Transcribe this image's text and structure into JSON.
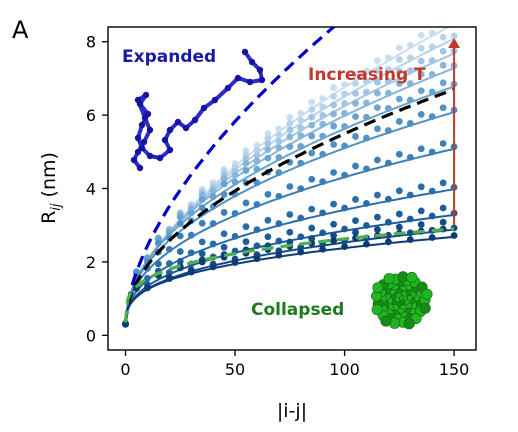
{
  "panel_label": "A",
  "colors": {
    "expanded": "#1a1aa8",
    "collapsed": "#1e7a1e",
    "arrow": "#c0392b",
    "expanded_fit": "#0000cc",
    "collapsed_fit": "#4caf50",
    "mid_fit": "#000000",
    "series_ramp": [
      "#c9dff0",
      "#b7d3ea",
      "#a1c5e3",
      "#87b5da",
      "#6ba3d0",
      "#5191c5",
      "#3b7fba",
      "#2a6dab",
      "#1d5c9a",
      "#144b86",
      "#0e3c72"
    ]
  },
  "chart_data": {
    "type": "scatter",
    "title": "",
    "xlabel": "|i-j|",
    "ylabel_main": "R",
    "ylabel_sub": "ij",
    "ylabel_unit": "(nm)",
    "xlim": [
      -8,
      160
    ],
    "ylim": [
      -0.4,
      8.4
    ],
    "xticks": [
      0,
      50,
      100,
      150
    ],
    "yticks": [
      0,
      2,
      4,
      6,
      8
    ],
    "grid": false,
    "x": [
      0,
      5,
      10,
      15,
      20,
      25,
      30,
      35,
      40,
      45,
      50,
      55,
      60,
      65,
      70,
      75,
      80,
      85,
      90,
      95,
      100,
      105,
      110,
      115,
      120,
      125,
      130,
      135,
      140,
      145,
      150
    ],
    "series_end_values": [
      8.6,
      8.2,
      7.8,
      7.4,
      6.9,
      6.2,
      5.2,
      4.1,
      3.4,
      3.0,
      2.8
    ],
    "reference_curves": [
      {
        "style": "dashed",
        "color": "#0000cc",
        "end_x": 96,
        "end_y": 8.45
      },
      {
        "style": "dashed",
        "color": "#000000",
        "end_x": 150,
        "end_y": 6.7
      },
      {
        "style": "dashed",
        "color": "#4caf50",
        "end_x": 150,
        "end_y": 2.9
      }
    ],
    "annotations": {
      "expanded": "Expanded",
      "collapsed": "Collapsed",
      "increasing": "Increasing T"
    },
    "arrow": {
      "x": 150,
      "from_y": 3.0,
      "to_y": 8.1
    }
  }
}
